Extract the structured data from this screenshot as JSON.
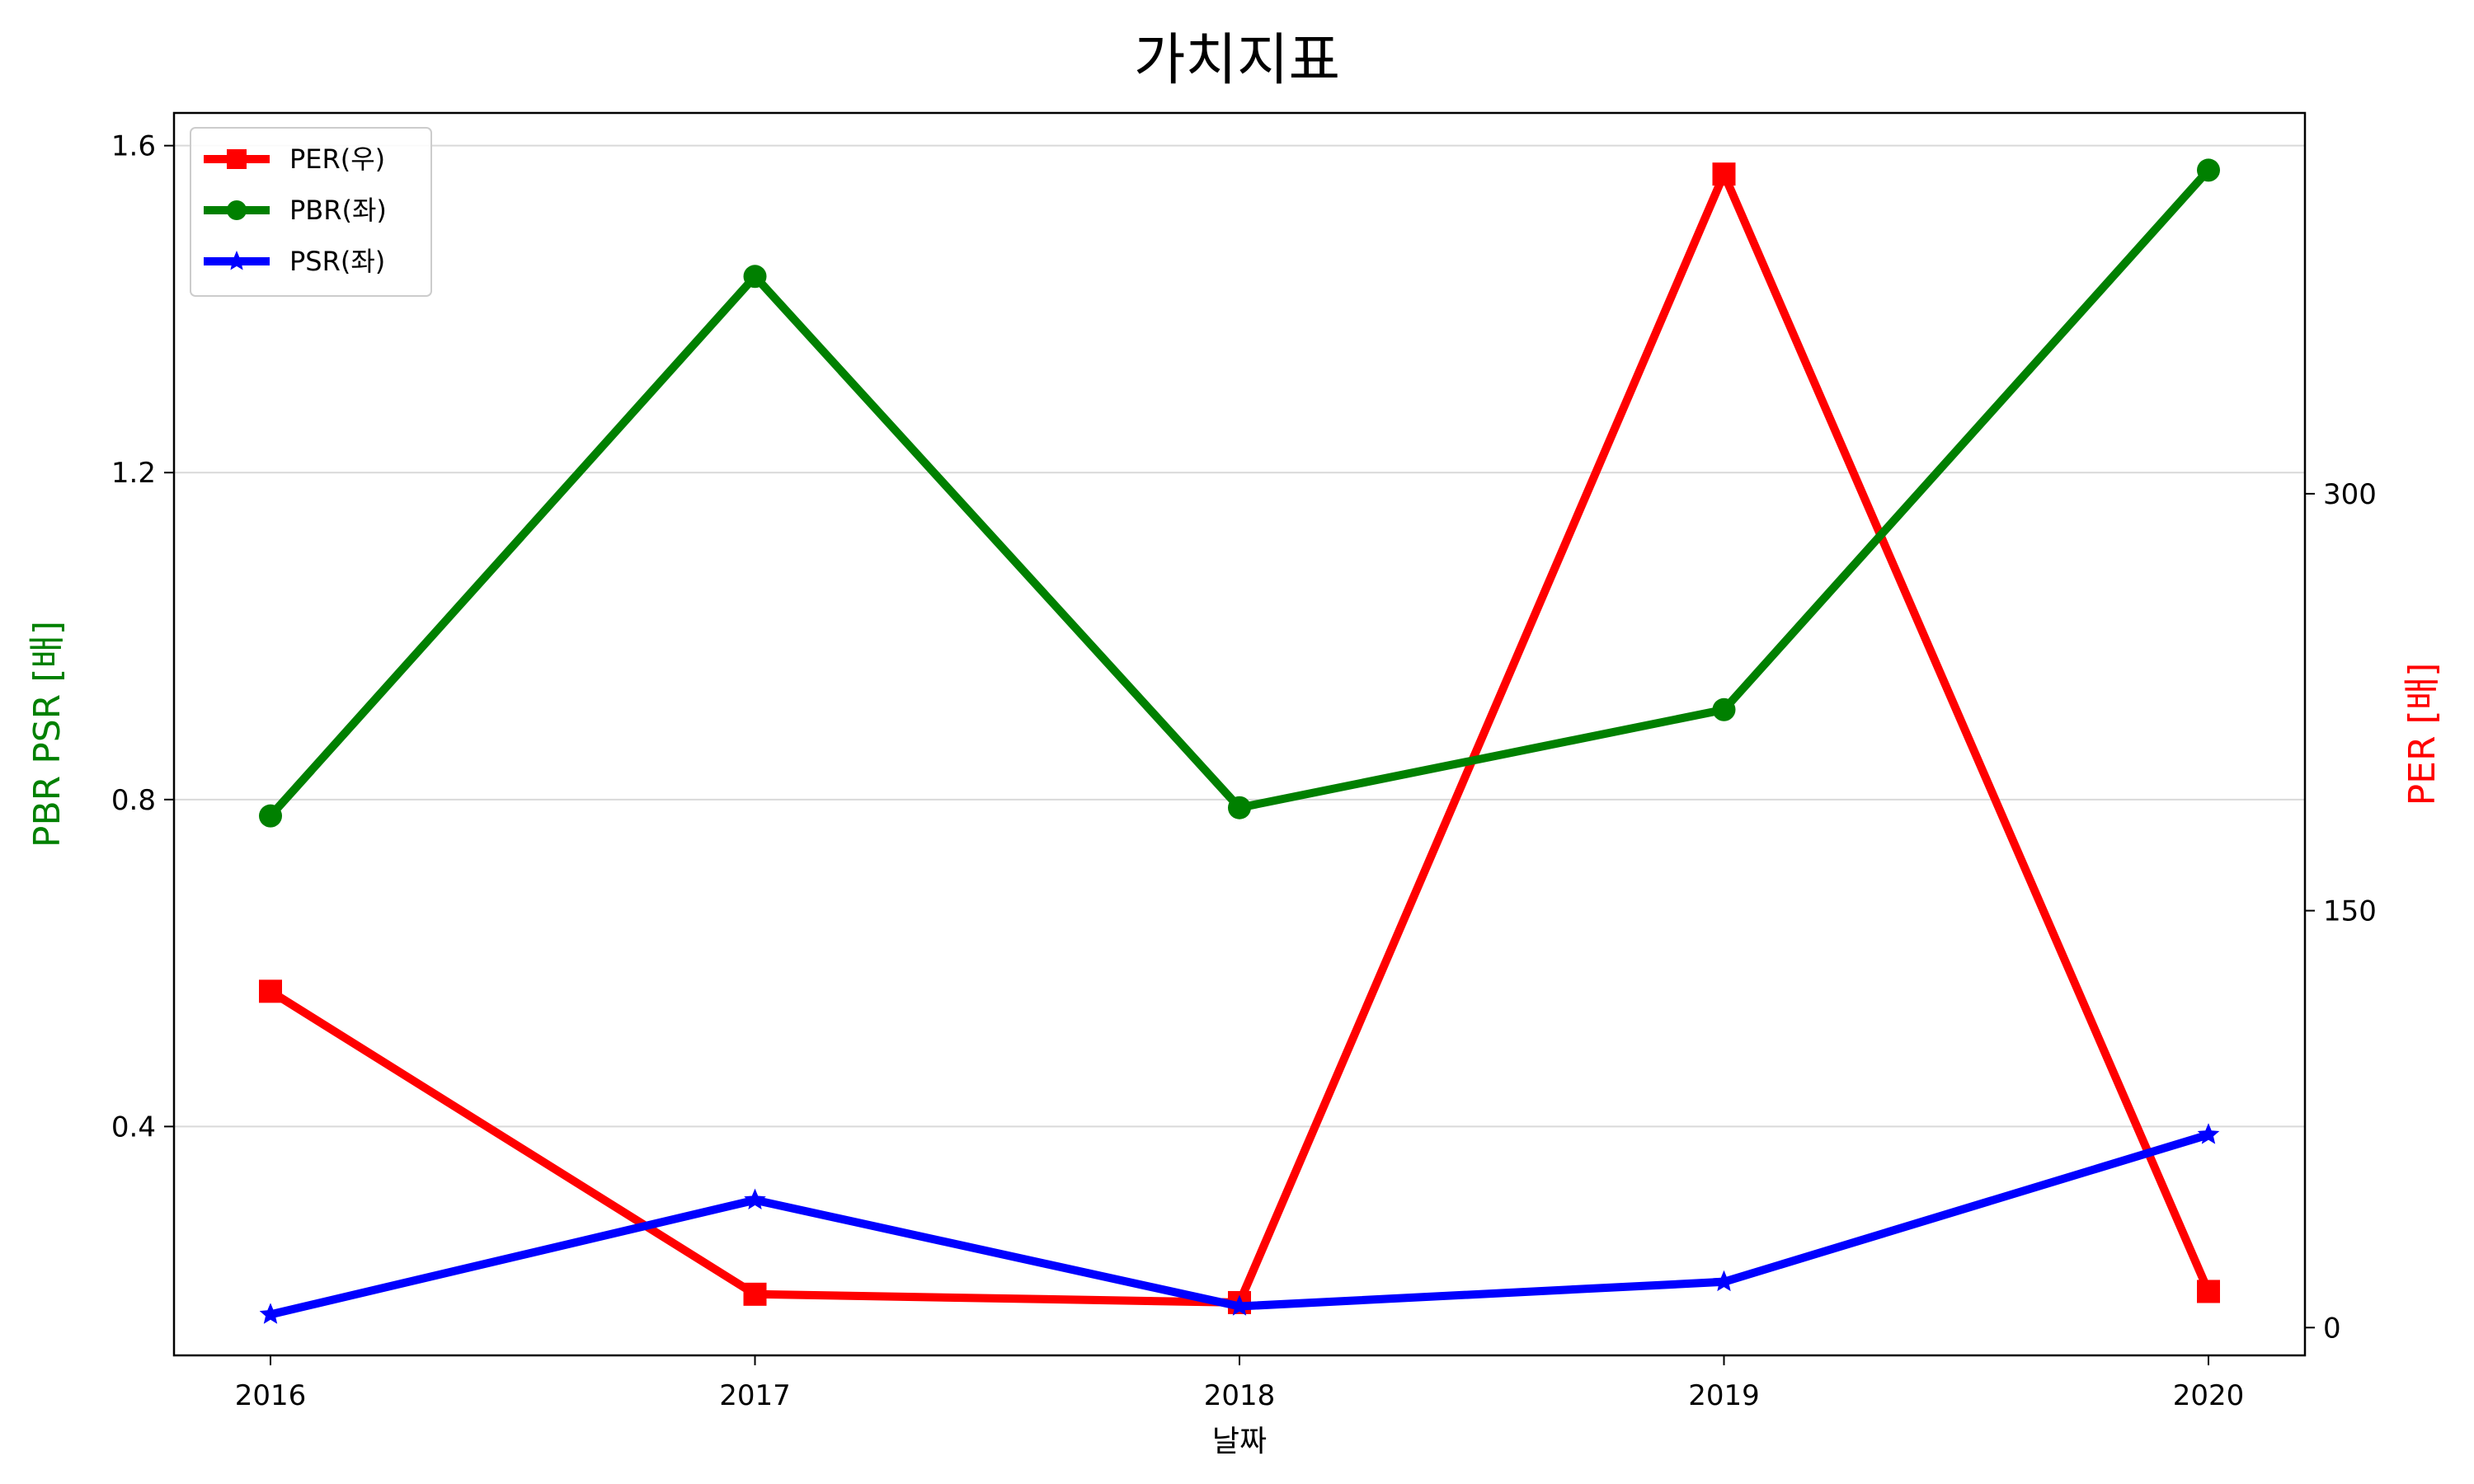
{
  "chart_data": {
    "type": "line",
    "title": "가치지표",
    "xlabel": "날짜",
    "ylabel_left": "PBR PSR [배]",
    "ylabel_right": "PER [배]",
    "categories": [
      "2016",
      "2017",
      "2018",
      "2019",
      "2020"
    ],
    "ylim_left": [
      0.12,
      1.64
    ],
    "ylim_right": [
      -10,
      437
    ],
    "yticks_left": [
      "0.4",
      "0.8",
      "1.2",
      "1.6"
    ],
    "yticks_right": [
      "0",
      "150",
      "300"
    ],
    "grid": true,
    "legend_position": "top-left",
    "series": [
      {
        "name": "PER(우)",
        "axis": "right",
        "color": "#ff0000",
        "marker": "square",
        "values": [
          121,
          12,
          9,
          415,
          13
        ]
      },
      {
        "name": "PBR(좌)",
        "axis": "left",
        "color": "#008000",
        "marker": "circle",
        "values": [
          0.78,
          1.44,
          0.79,
          0.91,
          1.57
        ]
      },
      {
        "name": "PSR(좌)",
        "axis": "left",
        "color": "#0000ff",
        "marker": "star",
        "values": [
          0.17,
          0.31,
          0.18,
          0.21,
          0.39
        ]
      }
    ],
    "colors": {
      "left_label": "#008000",
      "right_label": "#ff0000"
    }
  }
}
